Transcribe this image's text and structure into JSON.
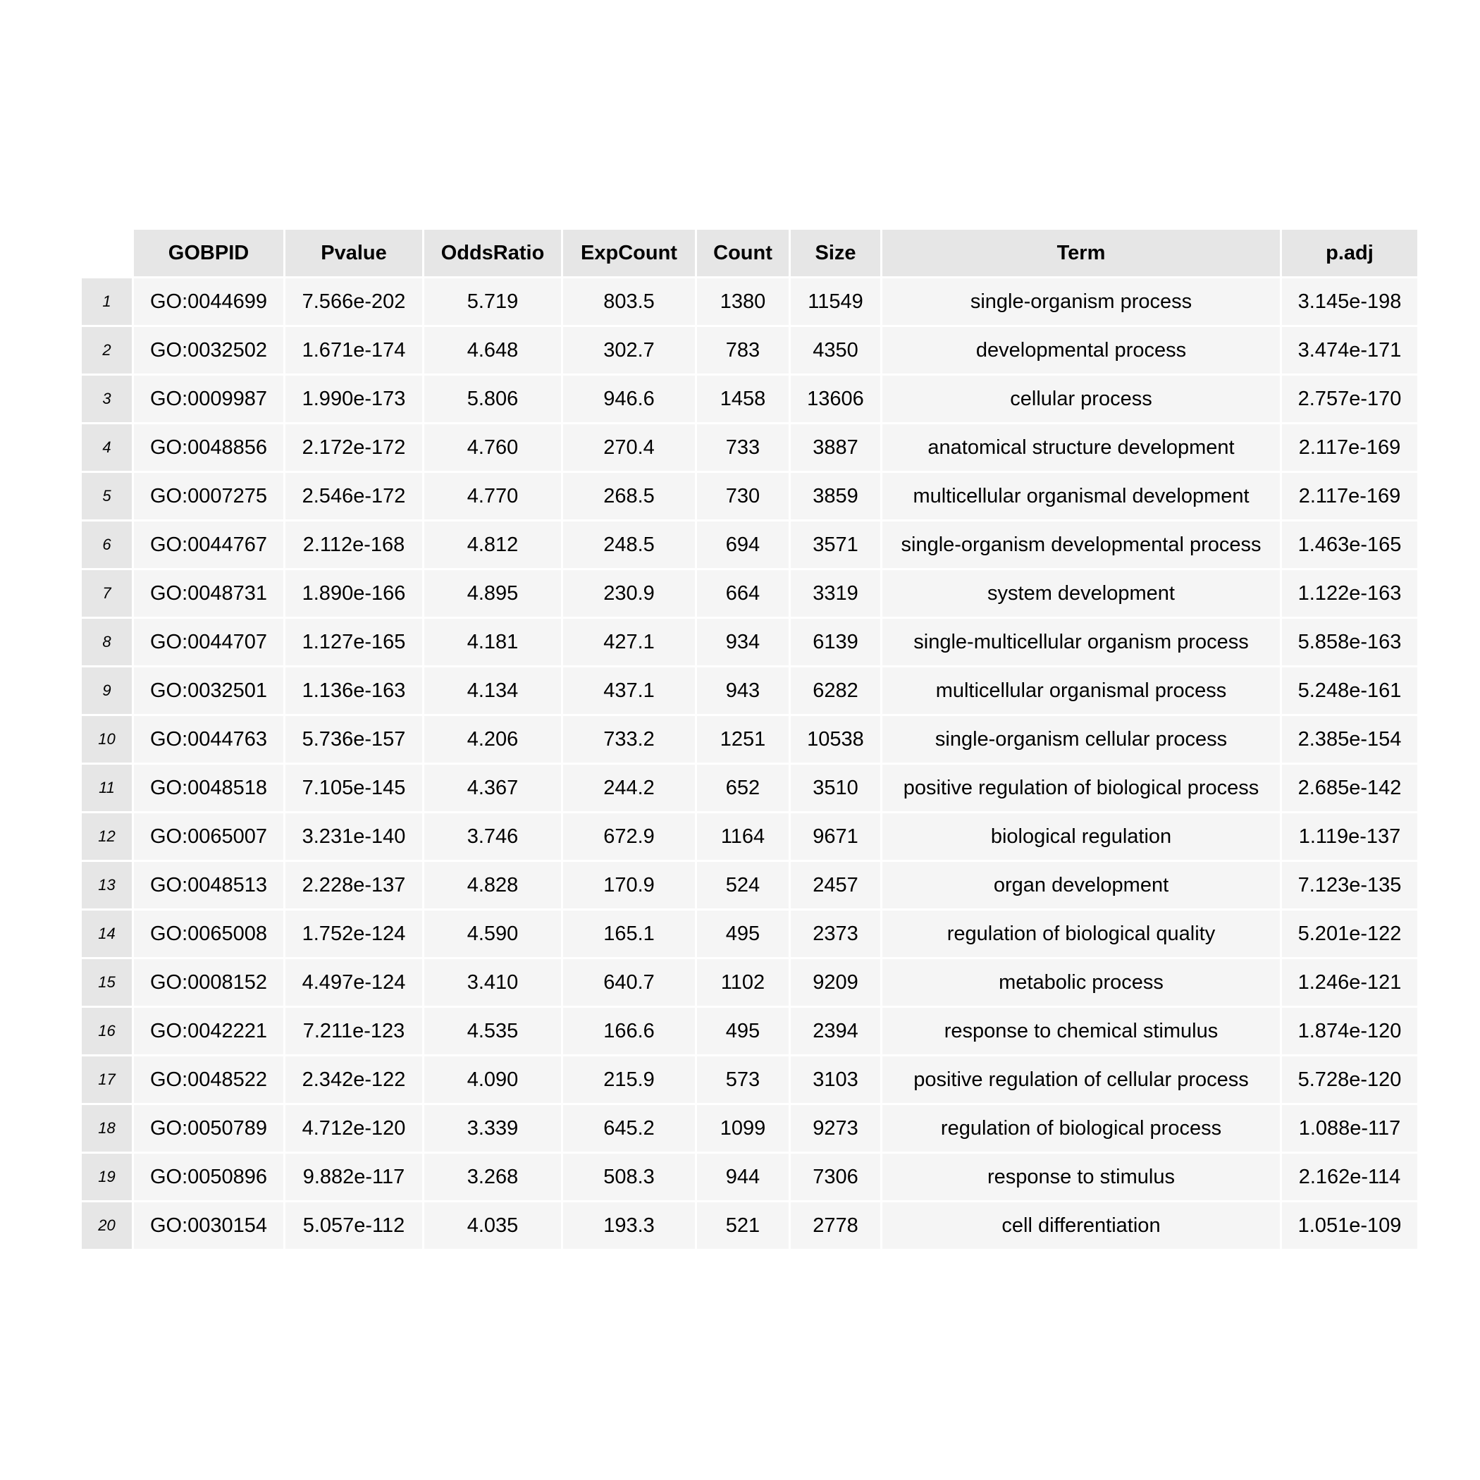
{
  "chart_data": {
    "type": "table",
    "columns": [
      "GOBPID",
      "Pvalue",
      "OddsRatio",
      "ExpCount",
      "Count",
      "Size",
      "Term",
      "p.adj"
    ],
    "row_labels": [
      "1",
      "2",
      "3",
      "4",
      "5",
      "6",
      "7",
      "8",
      "9",
      "10",
      "11",
      "12",
      "13",
      "14",
      "15",
      "16",
      "17",
      "18",
      "19",
      "20"
    ],
    "rows": [
      [
        "GO:0044699",
        "7.566e-202",
        "5.719",
        "803.5",
        "1380",
        "11549",
        "single-organism process",
        "3.145e-198"
      ],
      [
        "GO:0032502",
        "1.671e-174",
        "4.648",
        "302.7",
        "783",
        "4350",
        "developmental process",
        "3.474e-171"
      ],
      [
        "GO:0009987",
        "1.990e-173",
        "5.806",
        "946.6",
        "1458",
        "13606",
        "cellular process",
        "2.757e-170"
      ],
      [
        "GO:0048856",
        "2.172e-172",
        "4.760",
        "270.4",
        "733",
        "3887",
        "anatomical structure development",
        "2.117e-169"
      ],
      [
        "GO:0007275",
        "2.546e-172",
        "4.770",
        "268.5",
        "730",
        "3859",
        "multicellular organismal development",
        "2.117e-169"
      ],
      [
        "GO:0044767",
        "2.112e-168",
        "4.812",
        "248.5",
        "694",
        "3571",
        "single-organism developmental process",
        "1.463e-165"
      ],
      [
        "GO:0048731",
        "1.890e-166",
        "4.895",
        "230.9",
        "664",
        "3319",
        "system development",
        "1.122e-163"
      ],
      [
        "GO:0044707",
        "1.127e-165",
        "4.181",
        "427.1",
        "934",
        "6139",
        "single-multicellular organism process",
        "5.858e-163"
      ],
      [
        "GO:0032501",
        "1.136e-163",
        "4.134",
        "437.1",
        "943",
        "6282",
        "multicellular organismal process",
        "5.248e-161"
      ],
      [
        "GO:0044763",
        "5.736e-157",
        "4.206",
        "733.2",
        "1251",
        "10538",
        "single-organism cellular process",
        "2.385e-154"
      ],
      [
        "GO:0048518",
        "7.105e-145",
        "4.367",
        "244.2",
        "652",
        "3510",
        "positive regulation of biological process",
        "2.685e-142"
      ],
      [
        "GO:0065007",
        "3.231e-140",
        "3.746",
        "672.9",
        "1164",
        "9671",
        "biological regulation",
        "1.119e-137"
      ],
      [
        "GO:0048513",
        "2.228e-137",
        "4.828",
        "170.9",
        "524",
        "2457",
        "organ development",
        "7.123e-135"
      ],
      [
        "GO:0065008",
        "1.752e-124",
        "4.590",
        "165.1",
        "495",
        "2373",
        "regulation of biological quality",
        "5.201e-122"
      ],
      [
        "GO:0008152",
        "4.497e-124",
        "3.410",
        "640.7",
        "1102",
        "9209",
        "metabolic process",
        "1.246e-121"
      ],
      [
        "GO:0042221",
        "7.211e-123",
        "4.535",
        "166.6",
        "495",
        "2394",
        "response to chemical stimulus",
        "1.874e-120"
      ],
      [
        "GO:0048522",
        "2.342e-122",
        "4.090",
        "215.9",
        "573",
        "3103",
        "positive regulation of cellular process",
        "5.728e-120"
      ],
      [
        "GO:0050789",
        "4.712e-120",
        "3.339",
        "645.2",
        "1099",
        "9273",
        "regulation of biological process",
        "1.088e-117"
      ],
      [
        "GO:0050896",
        "9.882e-117",
        "3.268",
        "508.3",
        "944",
        "7306",
        "response to stimulus",
        "2.162e-114"
      ],
      [
        "GO:0030154",
        "5.057e-112",
        "4.035",
        "193.3",
        "521",
        "2778",
        "cell differentiation",
        "1.051e-109"
      ]
    ],
    "colors": {
      "header_bg": "#e6e6e6",
      "row_label_bg": "#e6e6e6",
      "cell_bg": "#f5f5f5",
      "page_bg": "#ffffff"
    }
  }
}
